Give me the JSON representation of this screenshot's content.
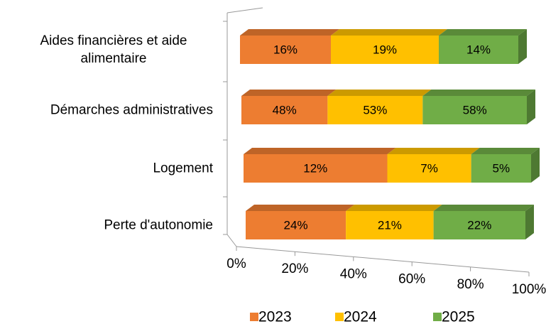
{
  "chart_data": {
    "type": "bar",
    "stacked": "percent",
    "orientation": "horizontal",
    "categories": [
      "Aides financières et aide alimentaire",
      "Démarches administratives",
      "Logement",
      "Perte d'autonomie"
    ],
    "series": [
      {
        "name": "2023",
        "color": "#ED7D31",
        "values": [
          16,
          48,
          12,
          24
        ],
        "value_labels": [
          "16%",
          "48%",
          "12%",
          "24%"
        ]
      },
      {
        "name": "2024",
        "color": "#FFC000",
        "values": [
          19,
          53,
          7,
          21
        ],
        "value_labels": [
          "19%",
          "53%",
          "7%",
          "21%"
        ]
      },
      {
        "name": "2025",
        "color": "#70AD47",
        "values": [
          14,
          58,
          5,
          22
        ],
        "value_labels": [
          "14%",
          "58%",
          "5%",
          "22%"
        ]
      }
    ],
    "xlim": [
      0,
      100
    ],
    "xticks": [
      {
        "value": 0,
        "label": "0%"
      },
      {
        "value": 20,
        "label": "20%"
      },
      {
        "value": 40,
        "label": "40%"
      },
      {
        "value": 60,
        "label": "60%"
      },
      {
        "value": 80,
        "label": "80%"
      },
      {
        "value": 100,
        "label": "100%"
      }
    ],
    "legend": "bottom"
  }
}
